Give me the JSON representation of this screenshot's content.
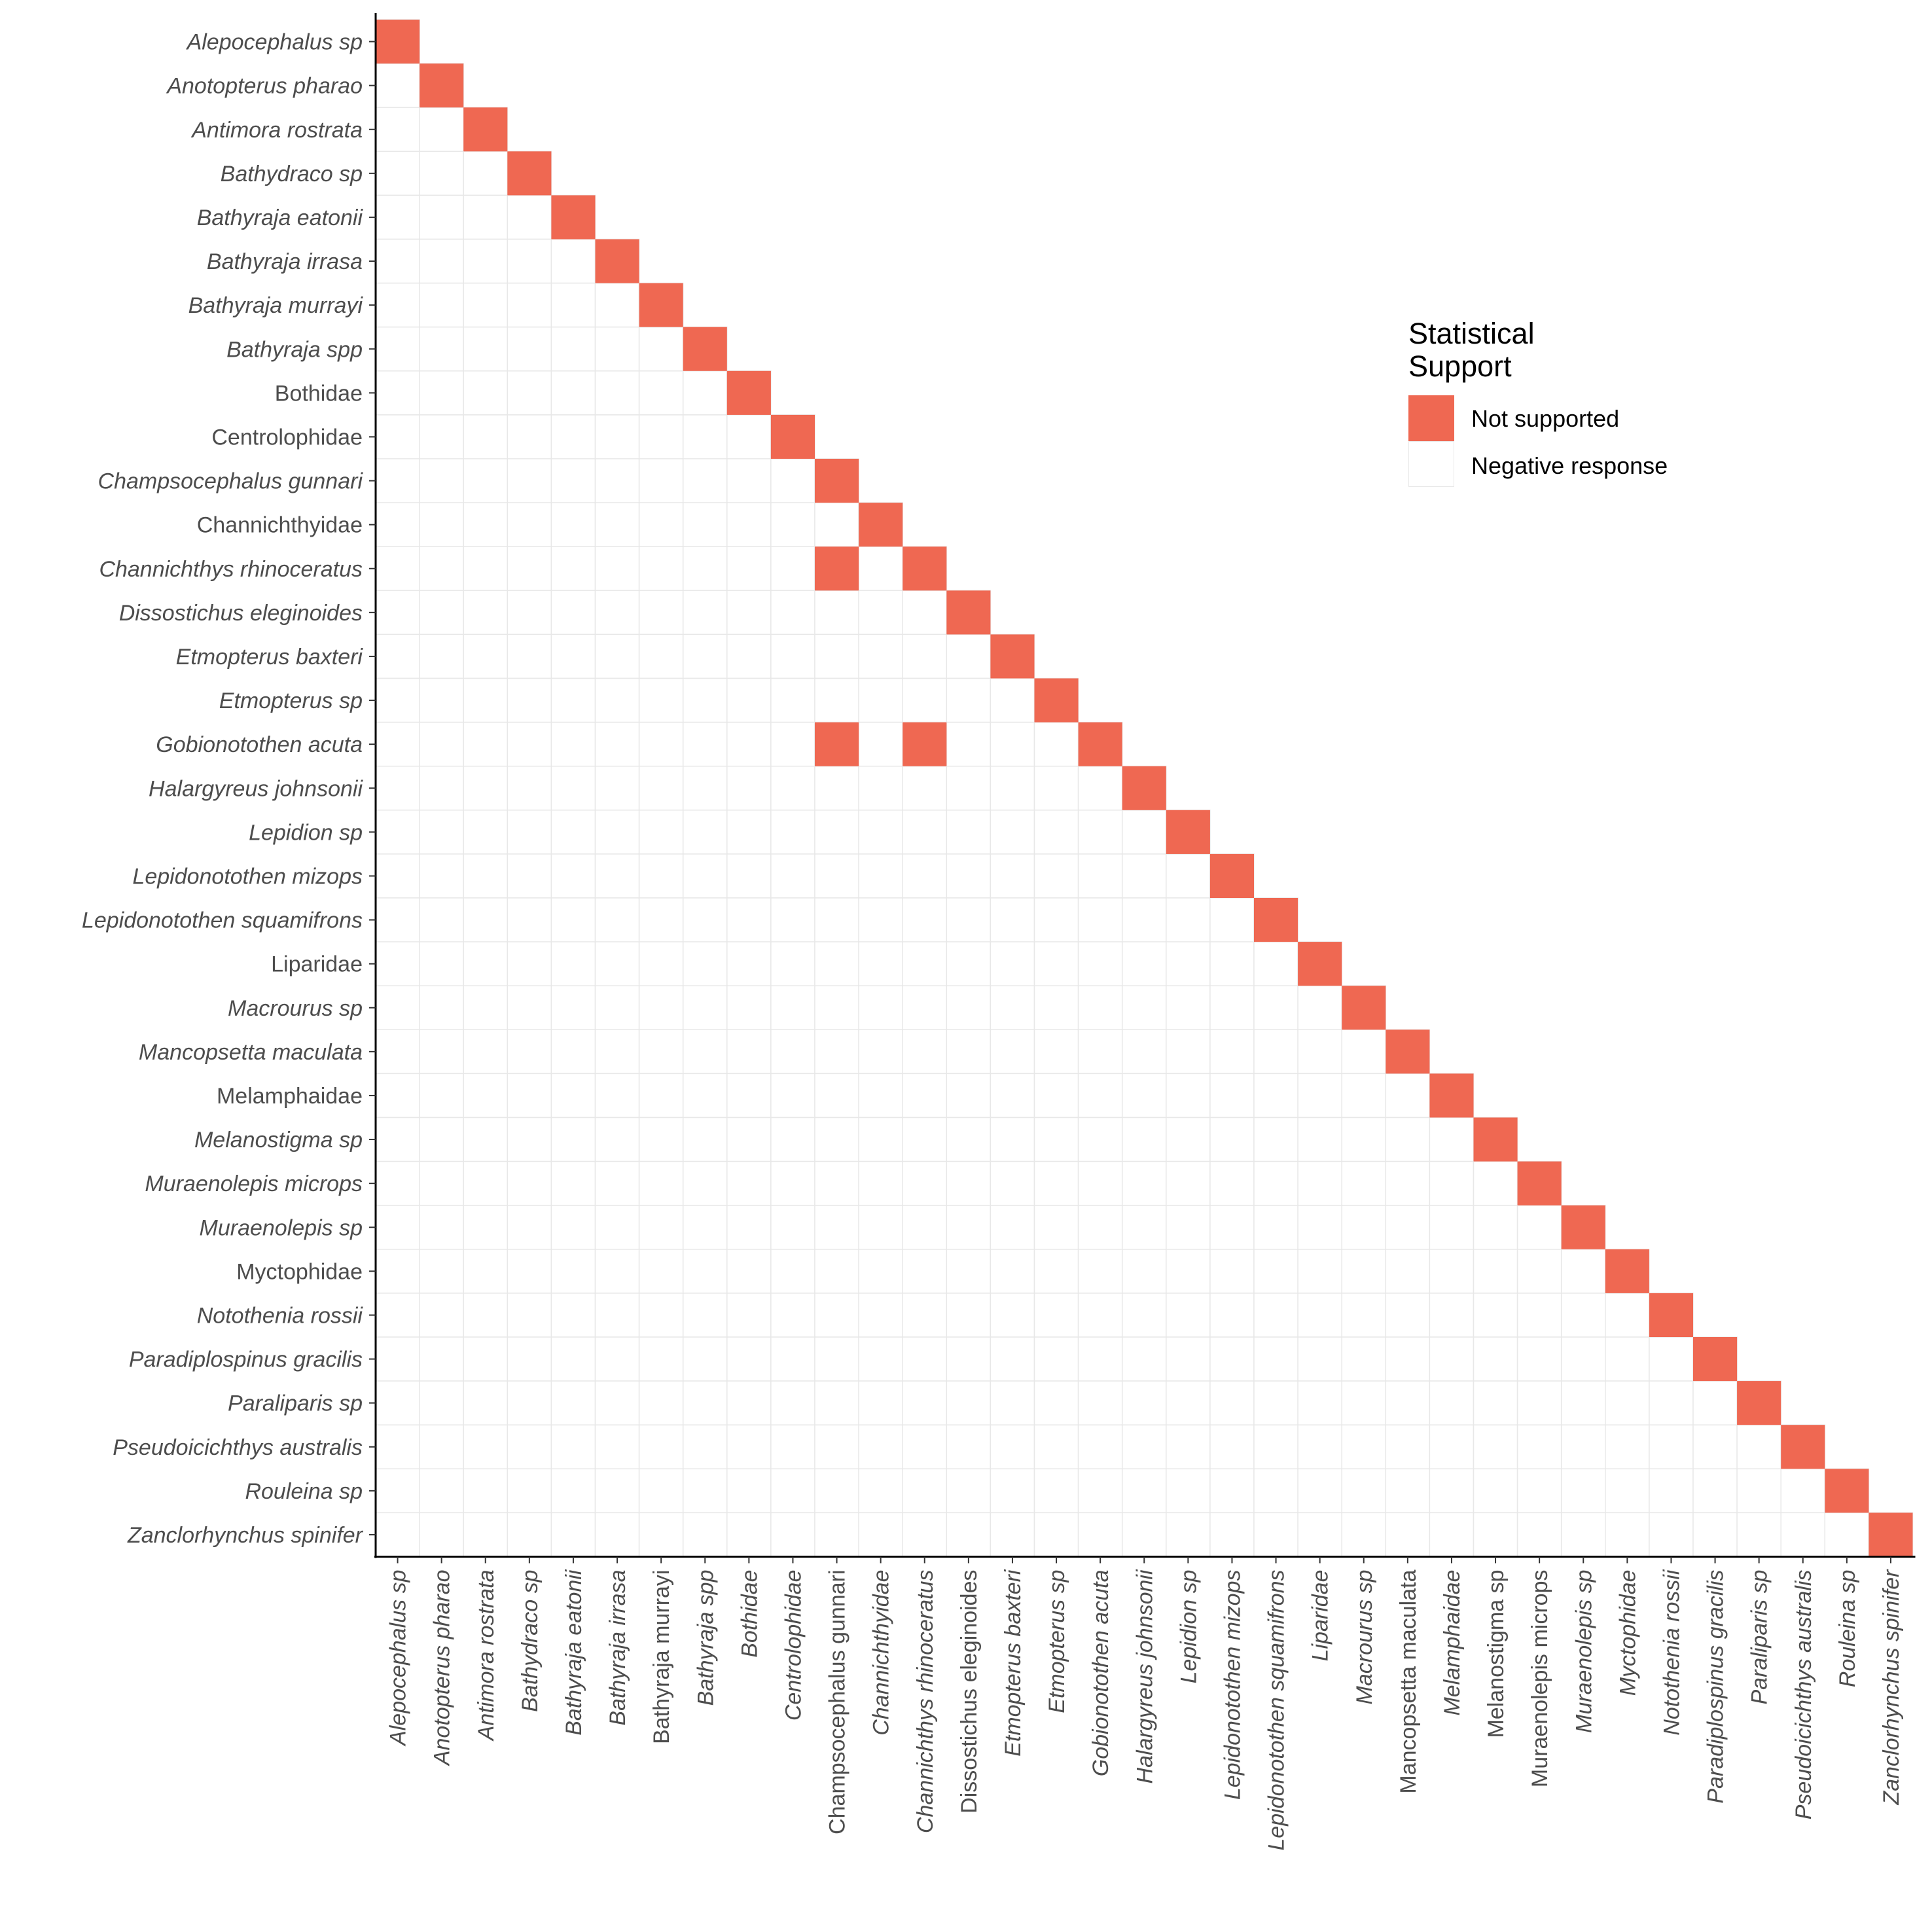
{
  "chart_data": {
    "type": "heatmap",
    "title": "",
    "xlabel": "",
    "ylabel": "",
    "grid": true,
    "legend_position": "right",
    "categories": [
      {
        "label": "Alepocephalus sp",
        "italic": true
      },
      {
        "label": "Anotopterus pharao",
        "italic": true
      },
      {
        "label": "Antimora rostrata",
        "italic": true
      },
      {
        "label": "Bathydraco sp",
        "italic": true
      },
      {
        "label": "Bathyraja eatonii",
        "italic": true
      },
      {
        "label": "Bathyraja irrasa",
        "italic": true
      },
      {
        "label": "Bathyraja murrayi",
        "italic": true
      },
      {
        "label": "Bathyraja spp",
        "italic": true
      },
      {
        "label": "Bothidae",
        "italic": false
      },
      {
        "label": "Centrolophidae",
        "italic": false
      },
      {
        "label": "Champsocephalus gunnari",
        "italic": true
      },
      {
        "label": "Channichthyidae",
        "italic": false
      },
      {
        "label": "Channichthys rhinoceratus",
        "italic": true
      },
      {
        "label": "Dissostichus eleginoides",
        "italic": true
      },
      {
        "label": "Etmopterus baxteri",
        "italic": true
      },
      {
        "label": "Etmopterus sp",
        "italic": true
      },
      {
        "label": "Gobionotothen acuta",
        "italic": true
      },
      {
        "label": "Halargyreus johnsonii",
        "italic": true
      },
      {
        "label": "Lepidion sp",
        "italic": true
      },
      {
        "label": "Lepidonotothen mizops",
        "italic": true
      },
      {
        "label": "Lepidonotothen squamifrons",
        "italic": true
      },
      {
        "label": "Liparidae",
        "italic": false
      },
      {
        "label": "Macrourus sp",
        "italic": true
      },
      {
        "label": "Mancopsetta maculata",
        "italic": true
      },
      {
        "label": "Melamphaidae",
        "italic": false
      },
      {
        "label": "Melanostigma sp",
        "italic": true
      },
      {
        "label": "Muraenolepis microps",
        "italic": true
      },
      {
        "label": "Muraenolepis sp",
        "italic": true
      },
      {
        "label": "Myctophidae",
        "italic": false
      },
      {
        "label": "Notothenia rossii",
        "italic": true
      },
      {
        "label": "Paradiplospinus gracilis",
        "italic": true
      },
      {
        "label": "Paraliparis sp",
        "italic": true
      },
      {
        "label": "Pseudoicichthys australis",
        "italic": true
      },
      {
        "label": "Rouleina sp",
        "italic": true
      },
      {
        "label": "Zanclorhynchus spinifer",
        "italic": true
      }
    ],
    "x_tick_italic": [
      true,
      true,
      true,
      true,
      true,
      true,
      false,
      true,
      true,
      true,
      false,
      true,
      true,
      false,
      true,
      true,
      true,
      true,
      true,
      true,
      true,
      true,
      true,
      false,
      true,
      false,
      false,
      true,
      true,
      true,
      true,
      true,
      true,
      true,
      true
    ],
    "colors": {
      "not_supported": "#EF6852",
      "negative": "#FFFFFF",
      "grid": "#E8E8E8",
      "axis": "#000000"
    },
    "cells_not_supported": [
      {
        "x": "Alepocephalus sp",
        "y": "Alepocephalus sp"
      },
      {
        "x": "Anotopterus pharao",
        "y": "Anotopterus pharao"
      },
      {
        "x": "Antimora rostrata",
        "y": "Antimora rostrata"
      },
      {
        "x": "Bathydraco sp",
        "y": "Bathydraco sp"
      },
      {
        "x": "Bathyraja eatonii",
        "y": "Bathyraja eatonii"
      },
      {
        "x": "Bathyraja irrasa",
        "y": "Bathyraja irrasa"
      },
      {
        "x": "Bathyraja murrayi",
        "y": "Bathyraja murrayi"
      },
      {
        "x": "Bathyraja spp",
        "y": "Bathyraja spp"
      },
      {
        "x": "Bothidae",
        "y": "Bothidae"
      },
      {
        "x": "Centrolophidae",
        "y": "Centrolophidae"
      },
      {
        "x": "Champsocephalus gunnari",
        "y": "Champsocephalus gunnari"
      },
      {
        "x": "Channichthyidae",
        "y": "Channichthyidae"
      },
      {
        "x": "Champsocephalus gunnari",
        "y": "Channichthys rhinoceratus"
      },
      {
        "x": "Channichthys rhinoceratus",
        "y": "Channichthys rhinoceratus"
      },
      {
        "x": "Dissostichus eleginoides",
        "y": "Dissostichus eleginoides"
      },
      {
        "x": "Etmopterus baxteri",
        "y": "Etmopterus baxteri"
      },
      {
        "x": "Etmopterus sp",
        "y": "Etmopterus sp"
      },
      {
        "x": "Champsocephalus gunnari",
        "y": "Gobionotothen acuta"
      },
      {
        "x": "Channichthys rhinoceratus",
        "y": "Gobionotothen acuta"
      },
      {
        "x": "Gobionotothen acuta",
        "y": "Gobionotothen acuta"
      },
      {
        "x": "Halargyreus johnsonii",
        "y": "Halargyreus johnsonii"
      },
      {
        "x": "Lepidion sp",
        "y": "Lepidion sp"
      },
      {
        "x": "Lepidonotothen mizops",
        "y": "Lepidonotothen mizops"
      },
      {
        "x": "Lepidonotothen squamifrons",
        "y": "Lepidonotothen squamifrons"
      },
      {
        "x": "Liparidae",
        "y": "Liparidae"
      },
      {
        "x": "Macrourus sp",
        "y": "Macrourus sp"
      },
      {
        "x": "Mancopsetta maculata",
        "y": "Mancopsetta maculata"
      },
      {
        "x": "Melamphaidae",
        "y": "Melamphaidae"
      },
      {
        "x": "Melanostigma sp",
        "y": "Melanostigma sp"
      },
      {
        "x": "Muraenolepis microps",
        "y": "Muraenolepis microps"
      },
      {
        "x": "Muraenolepis sp",
        "y": "Muraenolepis sp"
      },
      {
        "x": "Myctophidae",
        "y": "Myctophidae"
      },
      {
        "x": "Notothenia rossii",
        "y": "Notothenia rossii"
      },
      {
        "x": "Paradiplospinus gracilis",
        "y": "Paradiplospinus gracilis"
      },
      {
        "x": "Paraliparis sp",
        "y": "Paraliparis sp"
      },
      {
        "x": "Pseudoicichthys australis",
        "y": "Pseudoicichthys australis"
      },
      {
        "x": "Rouleina sp",
        "y": "Rouleina sp"
      },
      {
        "x": "Zanclorhynchus spinifer",
        "y": "Zanclorhynchus spinifer"
      }
    ],
    "cells_negative_response": "all other cells on or below the diagonal",
    "legend": {
      "title": "Statistical Support",
      "title_lines": [
        "Statistical",
        "Support"
      ],
      "items": [
        {
          "label": "Not supported",
          "color": "#EF6852"
        },
        {
          "label": "Negative response",
          "color": "#FFFFFF"
        }
      ]
    }
  }
}
